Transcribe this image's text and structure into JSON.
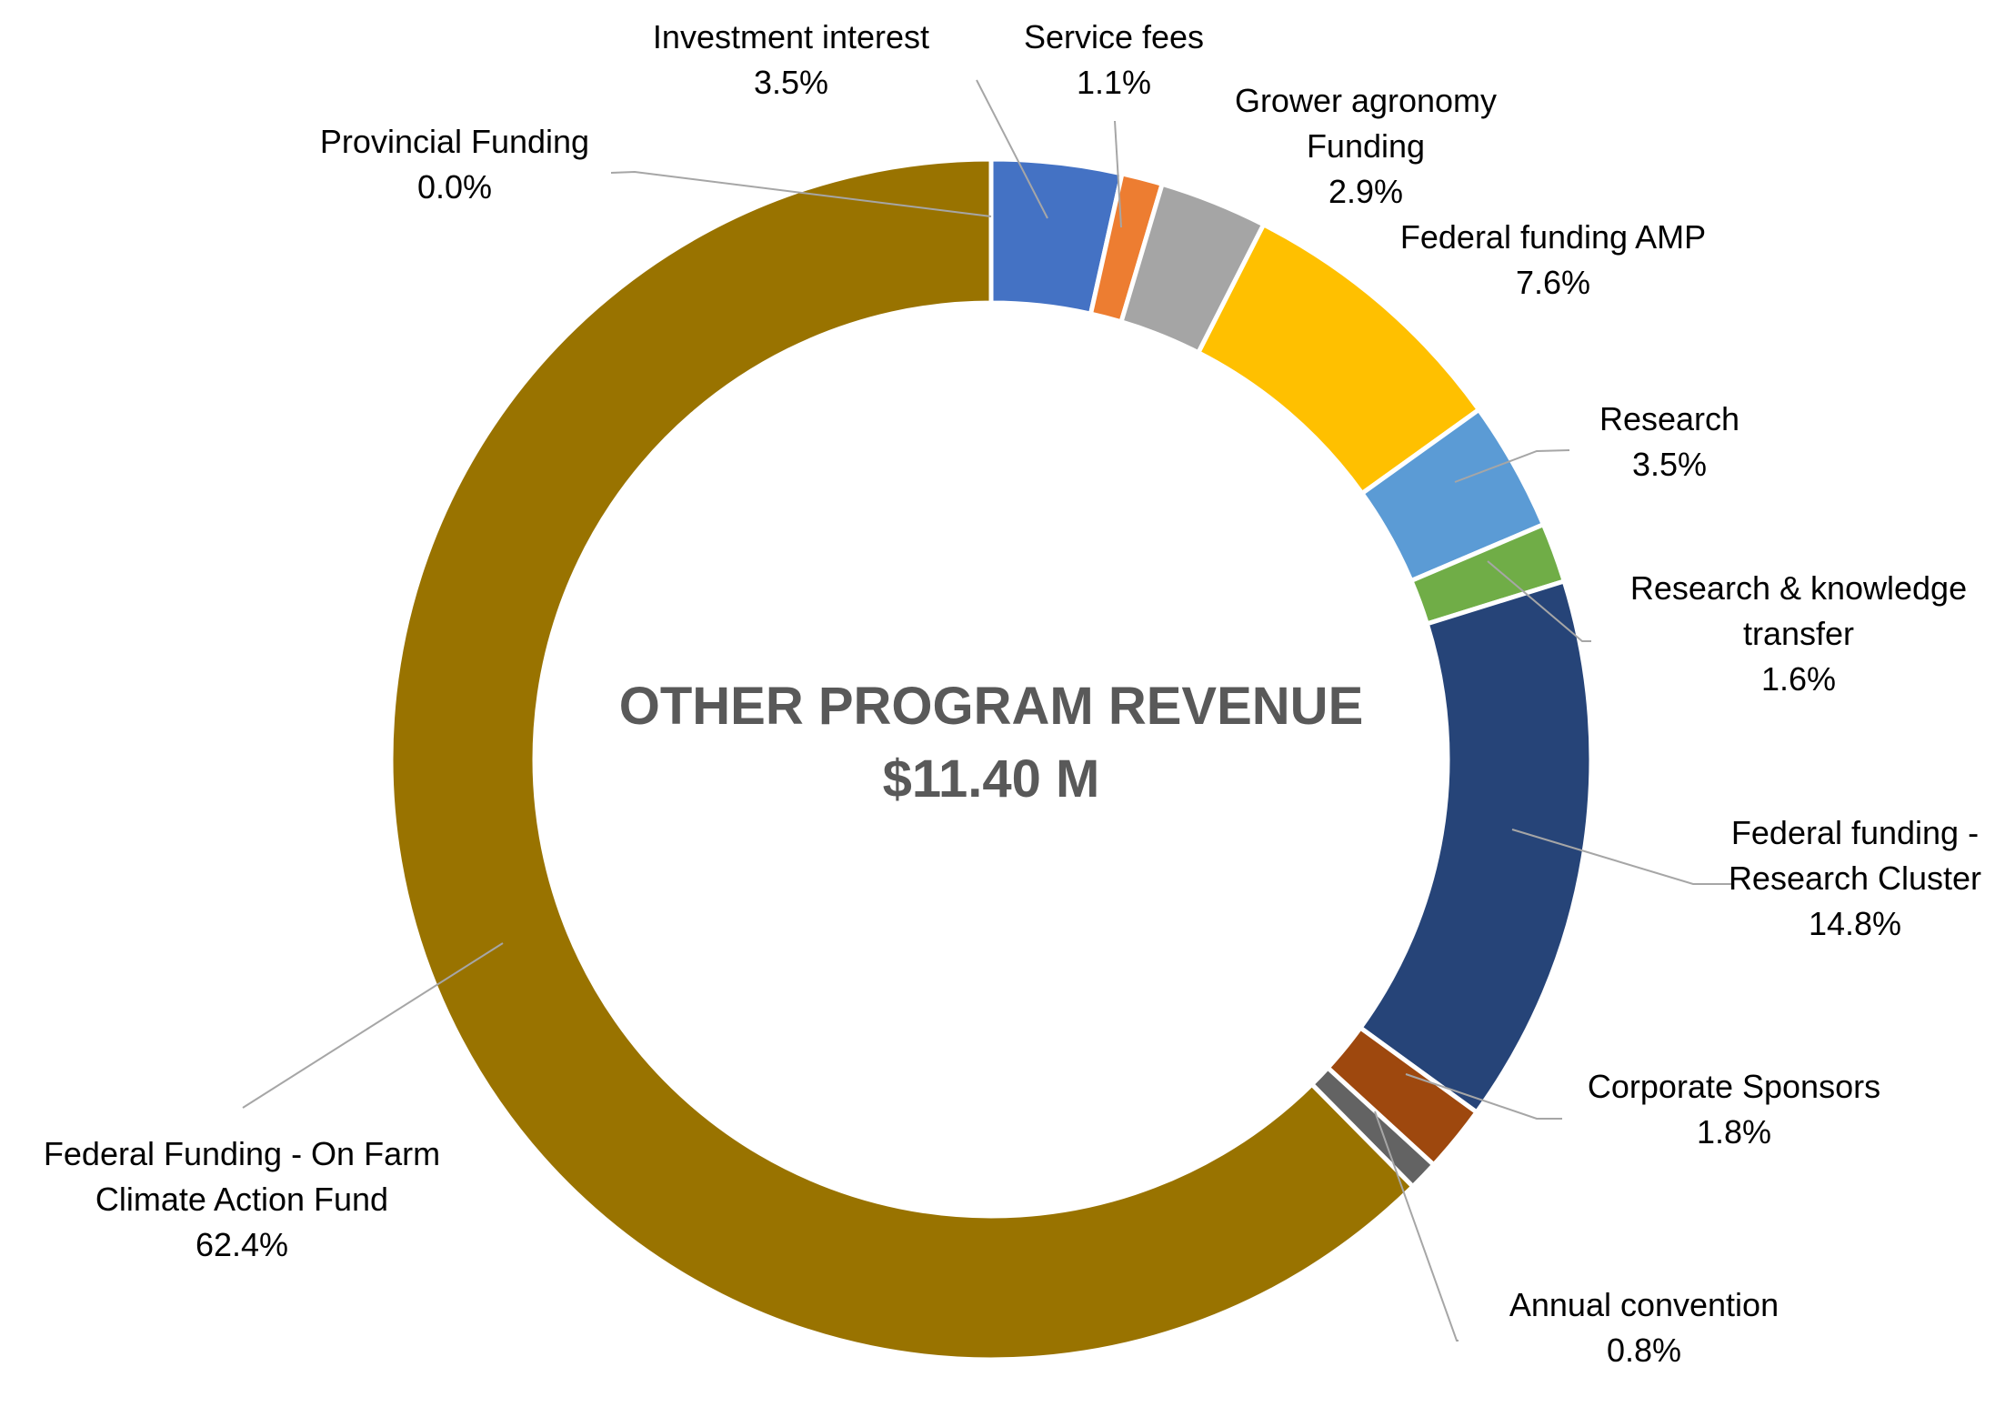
{
  "chart_data": {
    "type": "pie",
    "title": "OTHER PROGRAM REVENUE",
    "total_label": "$11.40 M",
    "slices": [
      {
        "name": "Investment interest",
        "value": 3.5,
        "label": "3.5%",
        "color": "#4472C4"
      },
      {
        "name": "Service fees",
        "value": 1.1,
        "label": "1.1%",
        "color": "#ED7D31"
      },
      {
        "name": "Grower agronomy Funding",
        "value": 2.9,
        "label": "2.9%",
        "color": "#A5A5A5"
      },
      {
        "name": "Federal funding AMP",
        "value": 7.6,
        "label": "7.6%",
        "color": "#FFC000"
      },
      {
        "name": "Research",
        "value": 3.5,
        "label": "3.5%",
        "color": "#5B9BD5"
      },
      {
        "name": "Research & knowledge transfer",
        "value": 1.6,
        "label": "1.6%",
        "color": "#70AD47"
      },
      {
        "name": "Federal funding - Research Cluster",
        "value": 14.8,
        "label": "14.8%",
        "color": "#264478"
      },
      {
        "name": "Corporate Sponsors",
        "value": 1.8,
        "label": "1.8%",
        "color": "#9E480E"
      },
      {
        "name": "Annual convention",
        "value": 0.8,
        "label": "0.8%",
        "color": "#636363"
      },
      {
        "name": "Federal Funding -  On Farm Climate Action Fund",
        "value": 62.4,
        "label": "62.4%",
        "color": "#997300"
      },
      {
        "name": "Provincial Funding",
        "value": 0.0,
        "label": "0.0%",
        "color": "#264478"
      }
    ]
  }
}
